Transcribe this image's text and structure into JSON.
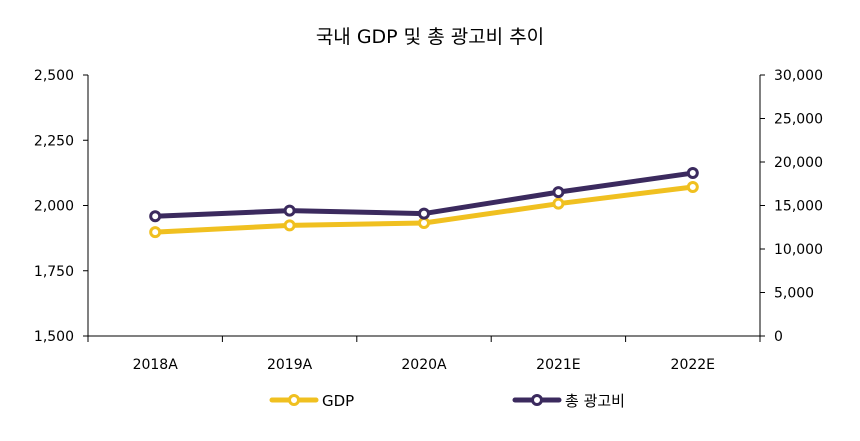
{
  "chart_data": {
    "type": "line",
    "title": "국내 GDP 및 총 광고비 추이",
    "categories": [
      "2018A",
      "2019A",
      "2020A",
      "2021E",
      "2022E"
    ],
    "left_axis": {
      "ylim": [
        1500,
        2500
      ],
      "ticks": [
        "1,500",
        "1,750",
        "2,000",
        "2,250",
        "2,500"
      ],
      "tick_values": [
        1500,
        1750,
        2000,
        2250,
        2500
      ]
    },
    "right_axis": {
      "ylim": [
        0,
        30000
      ],
      "ticks": [
        "0",
        "5,000",
        "10,000",
        "15,000",
        "20,000",
        "25,000",
        "30,000"
      ],
      "tick_values": [
        0,
        5000,
        10000,
        15000,
        20000,
        25000,
        30000
      ]
    },
    "series": [
      {
        "name": "GDP",
        "axis": "left",
        "color": "#f0c020",
        "values": [
          1898,
          1924,
          1933,
          2007,
          2071
        ]
      },
      {
        "name": "총 광고비",
        "axis": "right",
        "color": "#3b2a5e",
        "values": [
          13760,
          14410,
          14070,
          16540,
          18730
        ]
      }
    ],
    "grid": false,
    "legend": "bottom"
  }
}
